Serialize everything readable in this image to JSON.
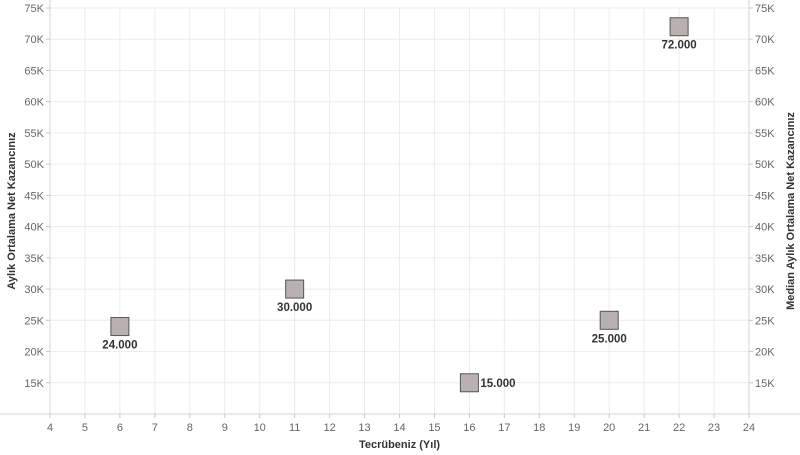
{
  "chart_data": {
    "type": "scatter",
    "xlabel": "Tecrübeniz (Yıl)",
    "ylabel": "Aylık Ortalama Net Kazancınız",
    "y2label": "Median Aylık Ortalama Net Kazancınız",
    "xlim": [
      4,
      24
    ],
    "ylim": [
      10000,
      75000
    ],
    "x_ticks": [
      "4",
      "5",
      "6",
      "7",
      "8",
      "9",
      "10",
      "11",
      "12",
      "13",
      "14",
      "15",
      "16",
      "17",
      "18",
      "19",
      "20",
      "21",
      "22",
      "23",
      "24"
    ],
    "y_ticks": [
      15000,
      20000,
      25000,
      30000,
      35000,
      40000,
      45000,
      50000,
      55000,
      60000,
      65000,
      70000,
      75000
    ],
    "y_tick_labels": [
      "15K",
      "20K",
      "25K",
      "30K",
      "35K",
      "40K",
      "45K",
      "50K",
      "55K",
      "60K",
      "65K",
      "70K",
      "75K"
    ],
    "grid": true,
    "marker": "square",
    "marker_color": "#b9b1b0",
    "marker_edge_color": "#555555",
    "points": [
      {
        "x": 6,
        "y": 24000,
        "label": "24.000",
        "label_position": "below"
      },
      {
        "x": 11,
        "y": 30000,
        "label": "30.000",
        "label_position": "below"
      },
      {
        "x": 16,
        "y": 15000,
        "label": "15.000",
        "label_position": "right"
      },
      {
        "x": 20,
        "y": 25000,
        "label": "25.000",
        "label_position": "below"
      },
      {
        "x": 22,
        "y": 72000,
        "label": "72.000",
        "label_position": "below"
      }
    ]
  }
}
